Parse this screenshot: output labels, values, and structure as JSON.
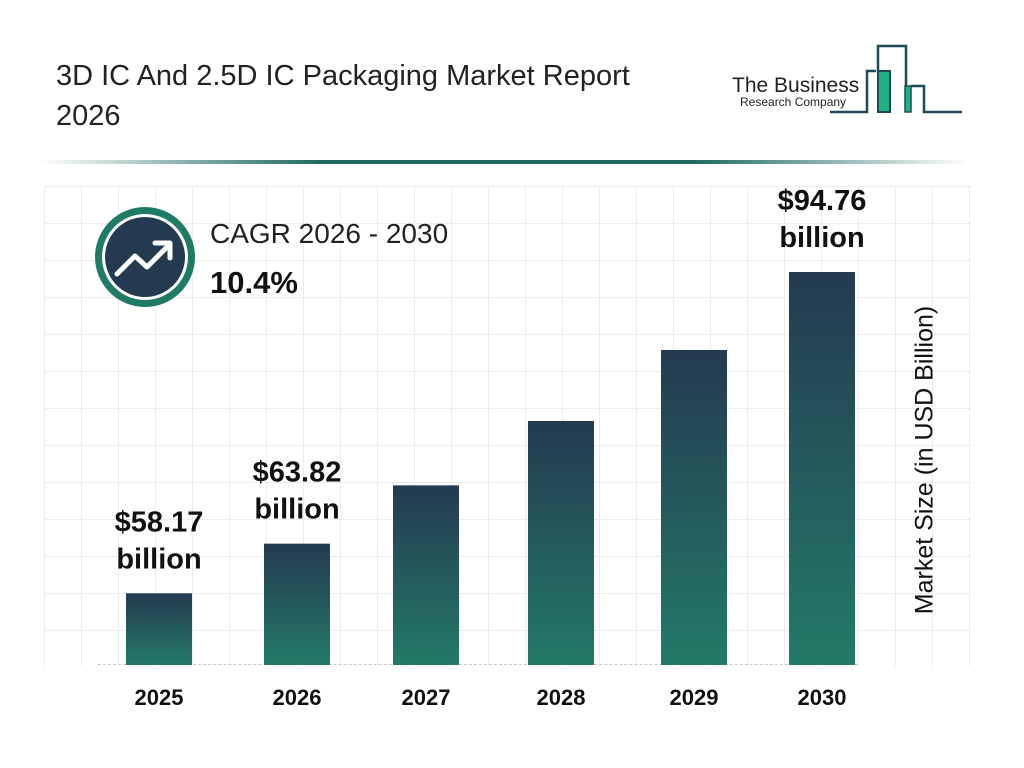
{
  "header": {
    "title": "3D IC And 2.5D IC Packaging Market Report 2026"
  },
  "logo": {
    "line1": "The Business",
    "line2": "Research Company"
  },
  "cagr": {
    "label": "CAGR 2026 - 2030",
    "value": "10.4%",
    "icon": "trending-up-icon"
  },
  "colors": {
    "bar_top": "#243a50",
    "bar_bottom": "#237a68",
    "ring": "#1f7a66",
    "badge": "#243a50"
  },
  "chart_data": {
    "type": "bar",
    "title": "",
    "categories": [
      "2025",
      "2026",
      "2027",
      "2028",
      "2029",
      "2030"
    ],
    "values": [
      58.17,
      63.82,
      70.46,
      77.79,
      85.88,
      94.76
    ],
    "data_labels": [
      {
        "index": 0,
        "line1": "$58.17",
        "line2": "billion"
      },
      {
        "index": 1,
        "line1": "$63.82",
        "line2": "billion"
      },
      {
        "index": 5,
        "line1": "$94.76",
        "line2": "billion"
      }
    ],
    "xlabel": "",
    "ylabel": "Market Size (in USD Billion)",
    "ylim": [
      50,
      100
    ],
    "grid": true
  }
}
